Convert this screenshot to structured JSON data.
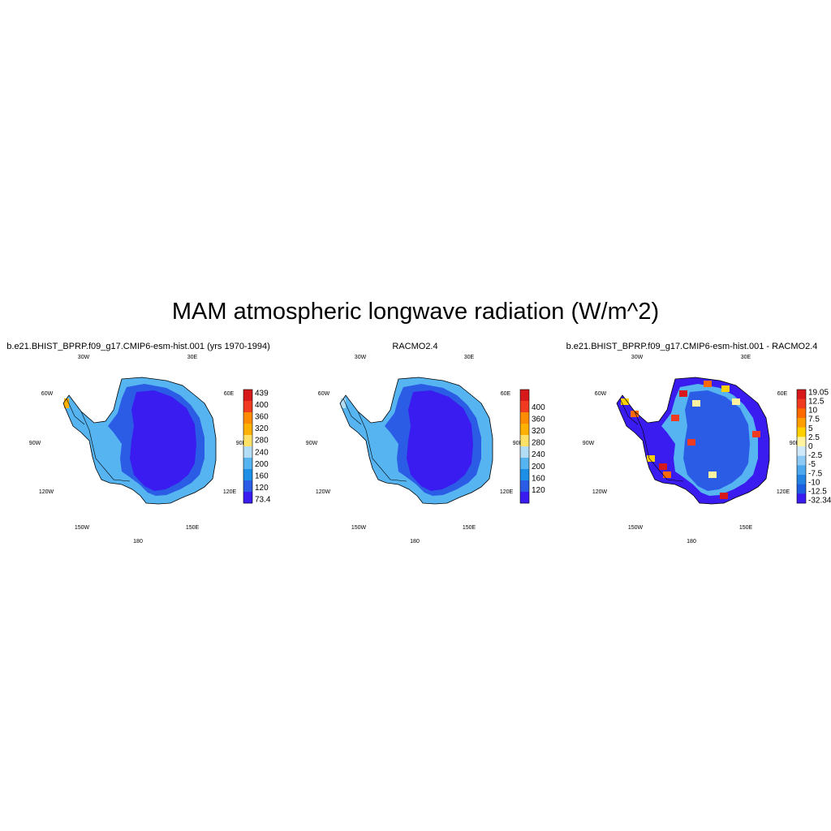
{
  "figure": {
    "title": "MAM atmospheric longwave radiation (W/m^2)"
  },
  "lon_labels": [
    "30W",
    "30E",
    "60W",
    "60E",
    "90W",
    "90E",
    "120W",
    "120E",
    "150W",
    "150E",
    "180"
  ],
  "panels": [
    {
      "title": "b.e21.BHIST_BPRP.f09_g17.CMIP6-esm-hist.001 (yrs 1970-1994)",
      "colorbar": {
        "labels": [
          "439",
          "400",
          "360",
          "320",
          "280",
          "240",
          "200",
          "160",
          "120",
          "73.4"
        ],
        "colors": [
          "#d7191c",
          "#f03b20",
          "#ff8c00",
          "#ffb000",
          "#ffe066",
          "#b3dcf5",
          "#56b4f0",
          "#1e8fe6",
          "#2b5ce6",
          "#3a1cf0"
        ]
      },
      "fill": {
        "interior": "#3a1cf0",
        "ring": "#2b5ce6",
        "outer": "#56b4f0"
      }
    },
    {
      "title": "RACMO2.4",
      "colorbar": {
        "labels": [
          "400",
          "360",
          "320",
          "280",
          "240",
          "200",
          "160",
          "120"
        ],
        "colors": [
          "#d7191c",
          "#f03b20",
          "#ff8c00",
          "#ffb000",
          "#ffe066",
          "#b3dcf5",
          "#56b4f0",
          "#1e8fe6",
          "#2b5ce6",
          "#3a1cf0"
        ]
      },
      "fill": {
        "interior": "#3a1cf0",
        "ring": "#2b5ce6",
        "outer": "#56b4f0"
      }
    },
    {
      "title": "b.e21.BHIST_BPRP.f09_g17.CMIP6-esm-hist.001 - RACMO2.4",
      "colorbar": {
        "labels": [
          "19.05",
          "12.5",
          "10",
          "7.5",
          "5",
          "2.5",
          "0",
          "-2.5",
          "-5",
          "-7.5",
          "-10",
          "-12.5",
          "-32.34"
        ],
        "colors": [
          "#d7191c",
          "#f03b20",
          "#ff6a00",
          "#ff9e00",
          "#ffd000",
          "#fff3a0",
          "#cfe9fb",
          "#8ccaf5",
          "#4ea8ee",
          "#2484e4",
          "#1c5fe0",
          "#3a1cf0"
        ]
      },
      "fill": {
        "interior": "#2b5ce6",
        "ring": "#56b4f0",
        "outer": "#3a1cf0"
      }
    }
  ]
}
